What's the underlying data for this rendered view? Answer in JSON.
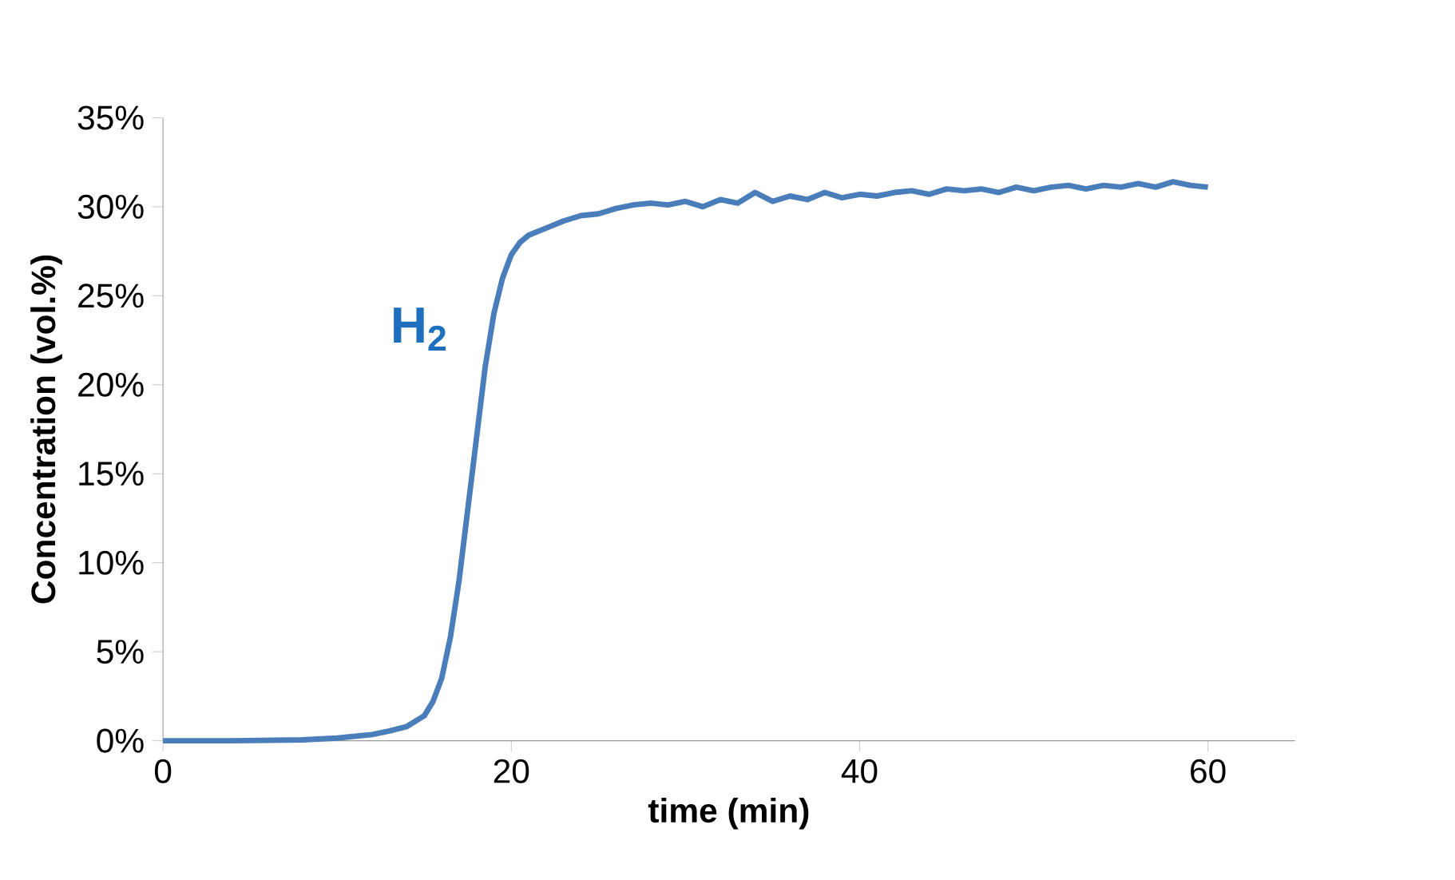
{
  "chart_data": {
    "type": "line",
    "xlabel": "time (min)",
    "ylabel": "Concentration (vol.%)",
    "xlim": [
      0,
      65
    ],
    "xticks": [
      0,
      20,
      40,
      60
    ],
    "ylim": [
      0,
      35
    ],
    "yticks": [
      {
        "value": 0,
        "label": "0%"
      },
      {
        "value": 5,
        "label": "5%"
      },
      {
        "value": 10,
        "label": "10%"
      },
      {
        "value": 15,
        "label": "15%"
      },
      {
        "value": 20,
        "label": "20%"
      },
      {
        "value": 25,
        "label": "25%"
      },
      {
        "value": 30,
        "label": "30%"
      },
      {
        "value": 35,
        "label": "35%"
      }
    ],
    "grid": false,
    "legend": false,
    "marker": "none",
    "line_style": "solid",
    "series": [
      {
        "name": "H$_{2}$",
        "color": "#4a7ebb",
        "x": [
          0,
          4,
          8,
          10,
          12,
          13,
          14,
          15,
          15.5,
          16,
          16.5,
          17,
          17.5,
          18,
          18.5,
          19,
          19.5,
          20,
          20.5,
          21,
          22,
          23,
          24,
          25,
          26,
          27,
          28,
          29,
          30,
          31,
          32,
          33,
          34,
          35,
          36,
          37,
          38,
          39,
          40,
          41,
          42,
          43,
          44,
          45,
          46,
          47,
          48,
          49,
          50,
          51,
          52,
          53,
          54,
          55,
          56,
          57,
          58,
          59,
          60
        ],
        "values": [
          0,
          0,
          0.05,
          0.15,
          0.35,
          0.55,
          0.8,
          1.4,
          2.2,
          3.5,
          5.8,
          9,
          13,
          17,
          21,
          24,
          26,
          27.3,
          28,
          28.4,
          28.8,
          29.2,
          29.5,
          29.6,
          29.9,
          30.1,
          30.2,
          30.1,
          30.3,
          30,
          30.4,
          30.2,
          30.8,
          30.3,
          30.6,
          30.4,
          30.8,
          30.5,
          30.7,
          30.6,
          30.8,
          30.9,
          30.7,
          31,
          30.9,
          31,
          30.8,
          31.1,
          30.9,
          31.1,
          31.2,
          31,
          31.2,
          31.1,
          31.3,
          31.1,
          31.4,
          31.2,
          31.1
        ]
      }
    ]
  }
}
